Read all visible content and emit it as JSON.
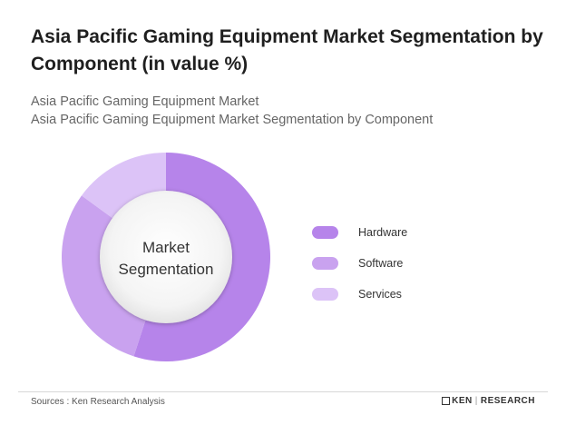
{
  "title": "Asia Pacific Gaming Equipment Market Segmentation by Component (in value %)",
  "subtitle_line1": "Asia Pacific Gaming Equipment Market",
  "subtitle_line2": "Asia Pacific Gaming Equipment Market Segmentation by Component",
  "chart_data": {
    "type": "pie",
    "variant": "donut",
    "center_label_line1": "Market",
    "center_label_line2": "Segmentation",
    "categories": [
      "Hardware",
      "Software",
      "Services"
    ],
    "values": [
      55,
      30,
      15
    ],
    "colors": [
      "#b684ea",
      "#c9a2ef",
      "#dcc3f7"
    ],
    "legend_position": "right"
  },
  "footer": {
    "source": "Sources : Ken Research Analysis",
    "brand_left": "KEN",
    "brand_right": "RESEARCH"
  }
}
